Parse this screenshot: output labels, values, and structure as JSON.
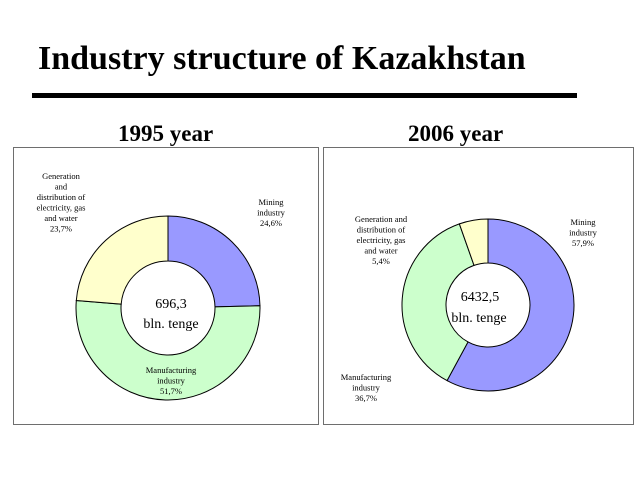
{
  "title": "Industry structure of Kazakhstan",
  "colors": {
    "mining": "#9999ff",
    "manufacturing": "#ccffcc",
    "generation": "#ffffcc"
  },
  "chart_data": [
    {
      "type": "pie",
      "title": "1995 year",
      "center_value": "696,3",
      "center_unit": "bln. tenge",
      "slices": [
        {
          "label_lines": [
            "Mining",
            "industry",
            "24,6%"
          ],
          "value": 24.6
        },
        {
          "label_lines": [
            "Manufacturing",
            "industry",
            "51,7%"
          ],
          "value": 51.7
        },
        {
          "label_lines": [
            "Generation",
            "and",
            "distribution of",
            "electricity, gas",
            "and water",
            "23,7%"
          ],
          "value": 23.7
        }
      ]
    },
    {
      "type": "pie",
      "title": "2006 year",
      "center_value": "6432,5",
      "center_unit": "bln. tenge",
      "slices": [
        {
          "label_lines": [
            "Mining",
            "industry",
            "57,9%"
          ],
          "value": 57.9
        },
        {
          "label_lines": [
            "Manufacturing",
            "industry",
            "36,7%"
          ],
          "value": 36.7
        },
        {
          "label_lines": [
            "Generation and",
            "distribution of",
            "electricity, gas",
            "and water",
            "5,4%"
          ],
          "value": 5.4
        }
      ]
    }
  ]
}
